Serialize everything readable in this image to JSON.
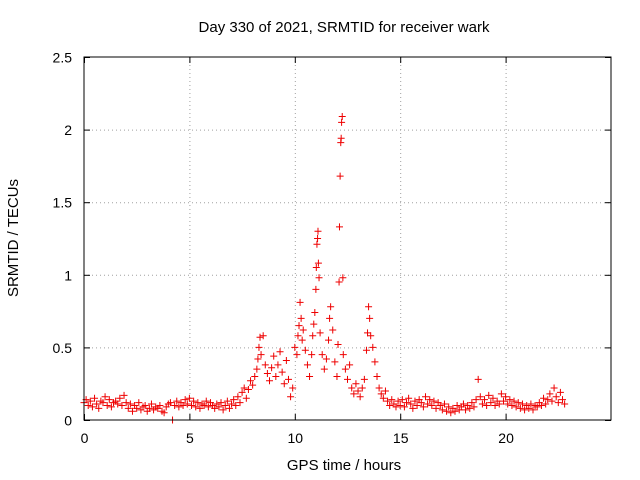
{
  "chart_data": {
    "type": "scatter",
    "title": "Day 330 of 2021, SRMTID for receiver wark",
    "xlabel": "GPS time / hours",
    "ylabel": "SRMTID / TECUs",
    "xlim": [
      0,
      25
    ],
    "ylim": [
      0,
      2.5
    ],
    "xticks": [
      0,
      5,
      10,
      15,
      20
    ],
    "xtick_labels": [
      "0",
      "5",
      "10",
      "15",
      "20"
    ],
    "yticks": [
      0,
      0.5,
      1,
      1.5,
      2,
      2.5
    ],
    "ytick_labels": [
      "0",
      "0.5",
      "1",
      "1.5",
      "2",
      "2.5"
    ],
    "grid": true,
    "marker": "+",
    "series": [
      {
        "name": "SRMTID",
        "color": "#ee0000",
        "points": [
          [
            0.0,
            0.12
          ],
          [
            0.1,
            0.14
          ],
          [
            0.2,
            0.1
          ],
          [
            0.3,
            0.13
          ],
          [
            0.4,
            0.09
          ],
          [
            0.5,
            0.15
          ],
          [
            0.6,
            0.11
          ],
          [
            0.7,
            0.08
          ],
          [
            0.8,
            0.13
          ],
          [
            0.9,
            0.12
          ],
          [
            1.0,
            0.16
          ],
          [
            1.1,
            0.1
          ],
          [
            1.2,
            0.14
          ],
          [
            1.3,
            0.09
          ],
          [
            1.4,
            0.12
          ],
          [
            1.5,
            0.13
          ],
          [
            1.6,
            0.11
          ],
          [
            1.7,
            0.15
          ],
          [
            1.8,
            0.1
          ],
          [
            1.9,
            0.17
          ],
          [
            2.0,
            0.12
          ],
          [
            2.1,
            0.08
          ],
          [
            2.2,
            0.11
          ],
          [
            2.3,
            0.06
          ],
          [
            2.4,
            0.1
          ],
          [
            2.5,
            0.08
          ],
          [
            2.6,
            0.12
          ],
          [
            2.7,
            0.07
          ],
          [
            2.8,
            0.09
          ],
          [
            2.9,
            0.1
          ],
          [
            3.0,
            0.06
          ],
          [
            3.1,
            0.08
          ],
          [
            3.2,
            0.11
          ],
          [
            3.3,
            0.07
          ],
          [
            3.4,
            0.09
          ],
          [
            3.5,
            0.08
          ],
          [
            3.6,
            0.1
          ],
          [
            3.7,
            0.06
          ],
          [
            3.8,
            0.05
          ],
          [
            3.9,
            0.09
          ],
          [
            4.0,
            0.11
          ],
          [
            4.1,
            0.12
          ],
          [
            4.2,
            0.0
          ],
          [
            4.3,
            0.1
          ],
          [
            4.4,
            0.13
          ],
          [
            4.5,
            0.09
          ],
          [
            4.6,
            0.12
          ],
          [
            4.7,
            0.1
          ],
          [
            4.8,
            0.14
          ],
          [
            4.9,
            0.11
          ],
          [
            5.0,
            0.15
          ],
          [
            5.1,
            0.1
          ],
          [
            5.2,
            0.13
          ],
          [
            5.3,
            0.09
          ],
          [
            5.4,
            0.12
          ],
          [
            5.5,
            0.08
          ],
          [
            5.6,
            0.11
          ],
          [
            5.7,
            0.1
          ],
          [
            5.8,
            0.13
          ],
          [
            5.9,
            0.09
          ],
          [
            6.0,
            0.12
          ],
          [
            6.1,
            0.1
          ],
          [
            6.2,
            0.08
          ],
          [
            6.3,
            0.11
          ],
          [
            6.4,
            0.09
          ],
          [
            6.5,
            0.12
          ],
          [
            6.6,
            0.07
          ],
          [
            6.7,
            0.1
          ],
          [
            6.8,
            0.13
          ],
          [
            6.9,
            0.08
          ],
          [
            7.0,
            0.11
          ],
          [
            7.1,
            0.14
          ],
          [
            7.2,
            0.1
          ],
          [
            7.3,
            0.16
          ],
          [
            7.4,
            0.12
          ],
          [
            7.5,
            0.19
          ],
          [
            7.6,
            0.22
          ],
          [
            7.7,
            0.15
          ],
          [
            7.8,
            0.21
          ],
          [
            7.9,
            0.27
          ],
          [
            8.0,
            0.24
          ],
          [
            8.1,
            0.3
          ],
          [
            8.2,
            0.35
          ],
          [
            8.25,
            0.42
          ],
          [
            8.3,
            0.5
          ],
          [
            8.35,
            0.57
          ],
          [
            8.4,
            0.45
          ],
          [
            8.5,
            0.58
          ],
          [
            8.6,
            0.38
          ],
          [
            8.7,
            0.32
          ],
          [
            8.8,
            0.27
          ],
          [
            8.9,
            0.36
          ],
          [
            9.0,
            0.44
          ],
          [
            9.1,
            0.3
          ],
          [
            9.2,
            0.38
          ],
          [
            9.3,
            0.47
          ],
          [
            9.4,
            0.33
          ],
          [
            9.5,
            0.25
          ],
          [
            9.6,
            0.41
          ],
          [
            9.7,
            0.28
          ],
          [
            9.8,
            0.16
          ],
          [
            9.9,
            0.22
          ],
          [
            10.0,
            0.5
          ],
          [
            10.1,
            0.45
          ],
          [
            10.15,
            0.58
          ],
          [
            10.2,
            0.65
          ],
          [
            10.25,
            0.81
          ],
          [
            10.3,
            0.7
          ],
          [
            10.35,
            0.55
          ],
          [
            10.4,
            0.62
          ],
          [
            10.5,
            0.48
          ],
          [
            10.6,
            0.38
          ],
          [
            10.7,
            0.3
          ],
          [
            10.8,
            0.45
          ],
          [
            10.85,
            0.58
          ],
          [
            10.9,
            0.66
          ],
          [
            10.95,
            0.74
          ],
          [
            11.0,
            0.9
          ],
          [
            11.02,
            1.05
          ],
          [
            11.05,
            1.21
          ],
          [
            11.08,
            1.25
          ],
          [
            11.1,
            1.3
          ],
          [
            11.12,
            1.08
          ],
          [
            11.15,
            0.98
          ],
          [
            11.2,
            0.6
          ],
          [
            11.3,
            0.45
          ],
          [
            11.4,
            0.35
          ],
          [
            11.5,
            0.42
          ],
          [
            11.6,
            0.55
          ],
          [
            11.65,
            0.7
          ],
          [
            11.7,
            0.78
          ],
          [
            11.8,
            0.62
          ],
          [
            11.9,
            0.4
          ],
          [
            12.0,
            0.3
          ],
          [
            12.05,
            0.52
          ],
          [
            12.1,
            0.95
          ],
          [
            12.12,
            1.33
          ],
          [
            12.15,
            1.68
          ],
          [
            12.18,
            1.91
          ],
          [
            12.2,
            1.94
          ],
          [
            12.22,
            2.05
          ],
          [
            12.25,
            2.09
          ],
          [
            12.28,
            0.98
          ],
          [
            12.3,
            0.45
          ],
          [
            12.4,
            0.35
          ],
          [
            12.5,
            0.28
          ],
          [
            12.6,
            0.38
          ],
          [
            12.7,
            0.22
          ],
          [
            12.8,
            0.18
          ],
          [
            12.9,
            0.25
          ],
          [
            13.0,
            0.2
          ],
          [
            13.1,
            0.16
          ],
          [
            13.2,
            0.22
          ],
          [
            13.3,
            0.28
          ],
          [
            13.4,
            0.48
          ],
          [
            13.45,
            0.6
          ],
          [
            13.5,
            0.78
          ],
          [
            13.55,
            0.7
          ],
          [
            13.6,
            0.58
          ],
          [
            13.7,
            0.5
          ],
          [
            13.8,
            0.4
          ],
          [
            13.9,
            0.3
          ],
          [
            14.0,
            0.22
          ],
          [
            14.1,
            0.18
          ],
          [
            14.2,
            0.15
          ],
          [
            14.3,
            0.2
          ],
          [
            14.4,
            0.13
          ],
          [
            14.5,
            0.1
          ],
          [
            14.6,
            0.14
          ],
          [
            14.7,
            0.11
          ],
          [
            14.8,
            0.09
          ],
          [
            14.9,
            0.13
          ],
          [
            15.0,
            0.1
          ],
          [
            15.1,
            0.14
          ],
          [
            15.2,
            0.09
          ],
          [
            15.3,
            0.12
          ],
          [
            15.4,
            0.15
          ],
          [
            15.5,
            0.11
          ],
          [
            15.6,
            0.08
          ],
          [
            15.7,
            0.13
          ],
          [
            15.8,
            0.1
          ],
          [
            15.9,
            0.14
          ],
          [
            16.0,
            0.12
          ],
          [
            16.1,
            0.09
          ],
          [
            16.2,
            0.16
          ],
          [
            16.3,
            0.11
          ],
          [
            16.4,
            0.14
          ],
          [
            16.5,
            0.1
          ],
          [
            16.6,
            0.13
          ],
          [
            16.7,
            0.08
          ],
          [
            16.8,
            0.12
          ],
          [
            16.9,
            0.1
          ],
          [
            17.0,
            0.07
          ],
          [
            17.1,
            0.11
          ],
          [
            17.2,
            0.06
          ],
          [
            17.3,
            0.09
          ],
          [
            17.4,
            0.05
          ],
          [
            17.5,
            0.08
          ],
          [
            17.6,
            0.06
          ],
          [
            17.7,
            0.1
          ],
          [
            17.8,
            0.07
          ],
          [
            17.9,
            0.09
          ],
          [
            18.0,
            0.11
          ],
          [
            18.1,
            0.07
          ],
          [
            18.2,
            0.1
          ],
          [
            18.3,
            0.08
          ],
          [
            18.4,
            0.12
          ],
          [
            18.5,
            0.09
          ],
          [
            18.6,
            0.14
          ],
          [
            18.7,
            0.28
          ],
          [
            18.8,
            0.16
          ],
          [
            18.9,
            0.11
          ],
          [
            19.0,
            0.14
          ],
          [
            19.1,
            0.1
          ],
          [
            19.2,
            0.17
          ],
          [
            19.3,
            0.12
          ],
          [
            19.4,
            0.15
          ],
          [
            19.5,
            0.1
          ],
          [
            19.6,
            0.13
          ],
          [
            19.7,
            0.11
          ],
          [
            19.8,
            0.18
          ],
          [
            19.9,
            0.13
          ],
          [
            20.0,
            0.16
          ],
          [
            20.1,
            0.11
          ],
          [
            20.2,
            0.14
          ],
          [
            20.3,
            0.1
          ],
          [
            20.4,
            0.13
          ],
          [
            20.5,
            0.09
          ],
          [
            20.6,
            0.12
          ],
          [
            20.7,
            0.08
          ],
          [
            20.8,
            0.11
          ],
          [
            20.9,
            0.07
          ],
          [
            21.0,
            0.1
          ],
          [
            21.1,
            0.08
          ],
          [
            21.2,
            0.11
          ],
          [
            21.3,
            0.07
          ],
          [
            21.4,
            0.1
          ],
          [
            21.5,
            0.09
          ],
          [
            21.6,
            0.12
          ],
          [
            21.7,
            0.1
          ],
          [
            21.8,
            0.15
          ],
          [
            21.9,
            0.11
          ],
          [
            22.0,
            0.14
          ],
          [
            22.1,
            0.18
          ],
          [
            22.2,
            0.13
          ],
          [
            22.3,
            0.22
          ],
          [
            22.4,
            0.16
          ],
          [
            22.5,
            0.12
          ],
          [
            22.6,
            0.19
          ],
          [
            22.7,
            0.14
          ],
          [
            22.8,
            0.11
          ]
        ]
      }
    ]
  }
}
